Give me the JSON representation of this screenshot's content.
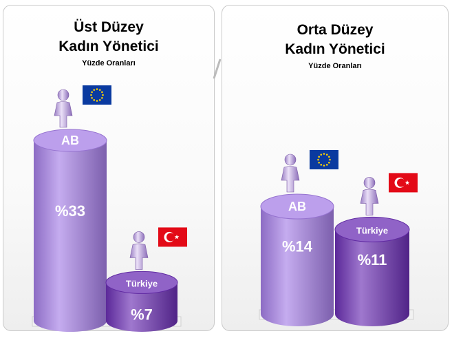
{
  "chart_data": [
    {
      "type": "bar",
      "title_lines": [
        "Üst Düzey",
        "Kadın Yönetici"
      ],
      "subtitle": "Yüzde Oranları",
      "unit_prefix": "%",
      "ylim": [
        0,
        33
      ],
      "categories": [
        "AB",
        "Türkiye"
      ],
      "values": [
        33,
        7
      ],
      "value_labels": [
        "%33",
        "%7"
      ],
      "flags": [
        "eu-flag-icon",
        "turkey-flag-icon"
      ],
      "colors": [
        "#a57fe6",
        "#6b2fb4"
      ]
    },
    {
      "type": "bar",
      "title_lines": [
        "Orta Düzey",
        "Kadın Yönetici"
      ],
      "subtitle": "Yüzde Oranları",
      "unit_prefix": "%",
      "ylim": [
        0,
        14
      ],
      "categories": [
        "AB",
        "Türkiye"
      ],
      "values": [
        14,
        11
      ],
      "value_labels": [
        "%14",
        "%11"
      ],
      "flags": [
        "eu-flag-icon",
        "turkey-flag-icon"
      ],
      "colors": [
        "#a57fe6",
        "#6b2fb4"
      ]
    }
  ]
}
